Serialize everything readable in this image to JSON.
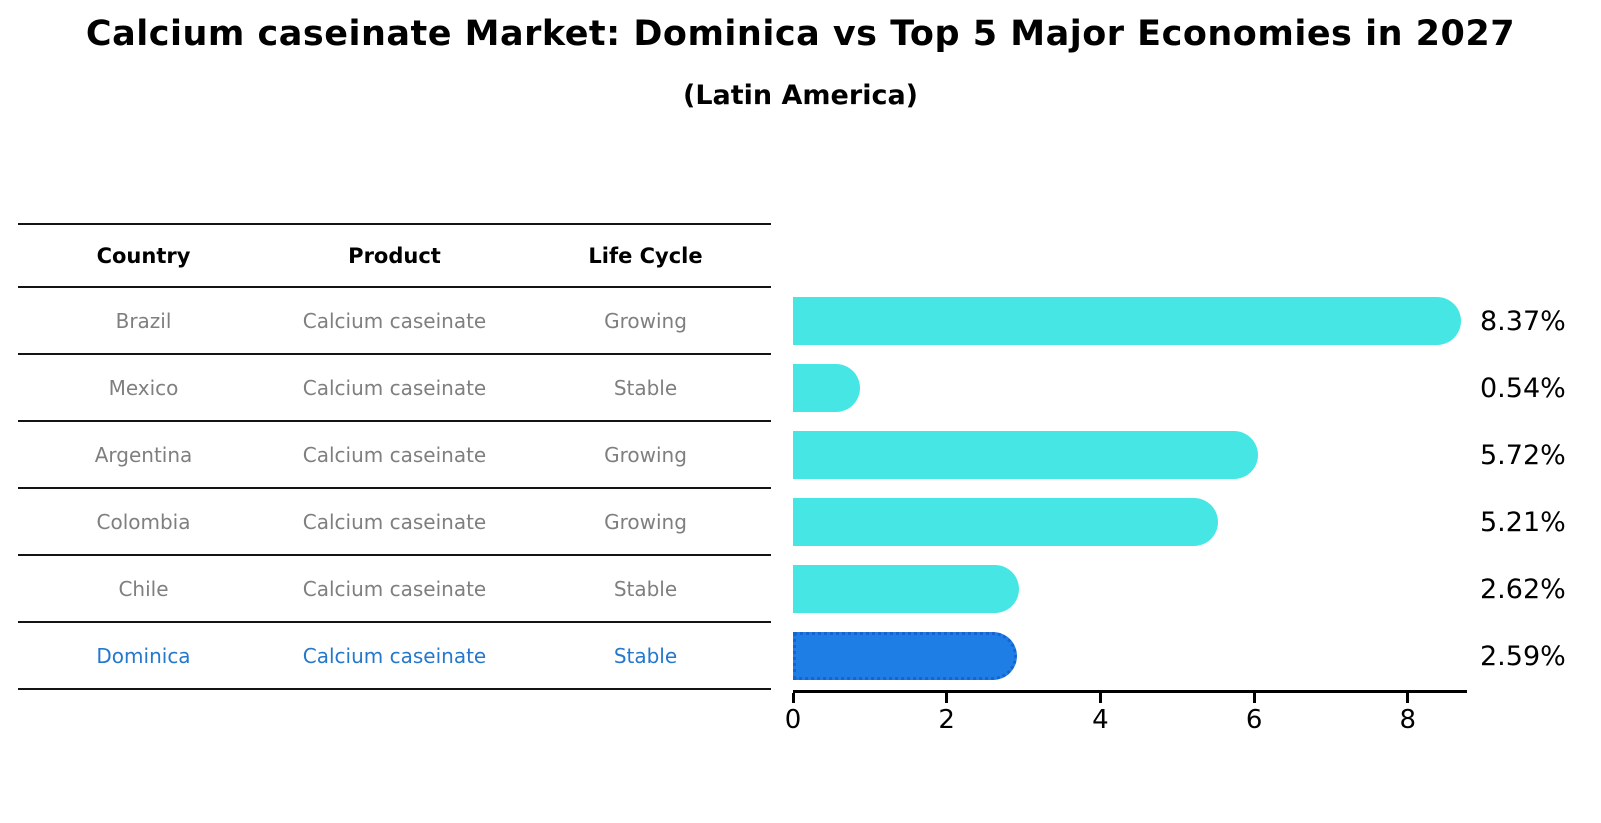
{
  "header": {
    "title": "Calcium caseinate Market: Dominica vs Top 5 Major Economies in 2027",
    "subtitle": "(Latin America)"
  },
  "table": {
    "headers": [
      "Country",
      "Product",
      "Life Cycle"
    ],
    "rows": [
      {
        "country": "Brazil",
        "product": "Calcium caseinate",
        "life_cycle": "Growing"
      },
      {
        "country": "Mexico",
        "product": "Calcium caseinate",
        "life_cycle": "Stable"
      },
      {
        "country": "Argentina",
        "product": "Calcium caseinate",
        "life_cycle": "Growing"
      },
      {
        "country": "Colombia",
        "product": "Calcium caseinate",
        "life_cycle": "Growing"
      },
      {
        "country": "Chile",
        "product": "Calcium caseinate",
        "life_cycle": "Stable"
      },
      {
        "country": "Dominica",
        "product": "Calcium caseinate",
        "life_cycle": "Stable"
      }
    ],
    "highlight_row": "Dominica"
  },
  "chart_data": {
    "type": "bar",
    "orientation": "horizontal",
    "title": "Calcium caseinate Market: Dominica vs Top 5 Major Economies in 2027",
    "subtitle": "(Latin America)",
    "categories": [
      "Brazil",
      "Mexico",
      "Argentina",
      "Colombia",
      "Chile",
      "Dominica"
    ],
    "values": [
      8.37,
      0.54,
      5.72,
      5.21,
      2.62,
      2.59
    ],
    "value_labels": [
      "8.37%",
      "0.54%",
      "5.72%",
      "5.21%",
      "2.62%",
      "2.59%"
    ],
    "unit": "%",
    "highlight_index": 5,
    "x_ticks": [
      0,
      2,
      4,
      6,
      8
    ],
    "xlim": [
      0,
      8.77
    ],
    "grid": false,
    "legend": false,
    "colors": {
      "bar": "#45E6E4",
      "highlight_bar": "#1E7EE6",
      "highlight_bar_border": "#1663D1",
      "highlight_text": "#2478CE",
      "row_text": "#7F7F7F",
      "axis": "#000000"
    }
  }
}
